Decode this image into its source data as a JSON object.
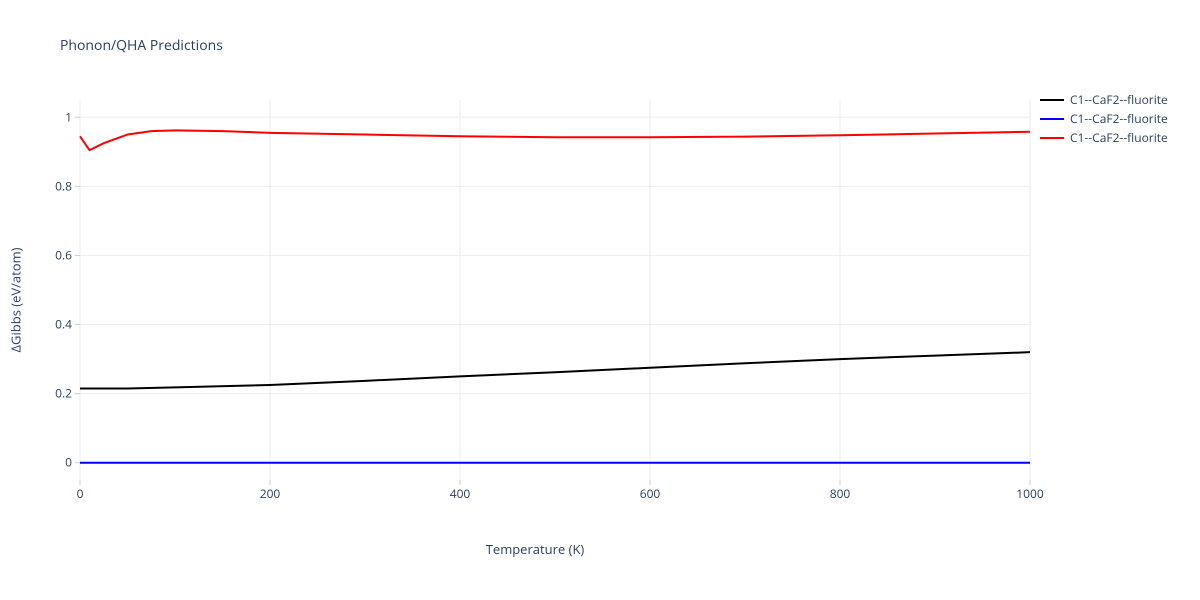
{
  "title": "Phonon/QHA Predictions",
  "xlabel": "Temperature (K)",
  "ylabel": "ΔGibbs (eV/atom)",
  "chart": {
    "type": "line",
    "xlim": [
      0,
      1000
    ],
    "ylim": [
      -0.05,
      1.05
    ],
    "xticks": [
      0,
      200,
      400,
      600,
      800,
      1000
    ],
    "yticks": [
      0,
      0.2,
      0.4,
      0.6,
      0.8,
      1
    ],
    "background_color": "#ffffff",
    "grid_color": "#eeeeee",
    "axis_line_color": "#cccccc",
    "tick_label_color": "#2a3f5f",
    "tick_label_fontsize": 12,
    "title_fontsize": 14,
    "label_fontsize": 13,
    "line_width": 2,
    "series": [
      {
        "name": "C1--CaF2--fluorite",
        "color": "#000000",
        "x": [
          0,
          50,
          100,
          200,
          300,
          400,
          500,
          600,
          700,
          800,
          900,
          1000
        ],
        "y": [
          0.215,
          0.215,
          0.218,
          0.225,
          0.237,
          0.25,
          0.262,
          0.275,
          0.288,
          0.3,
          0.31,
          0.32
        ]
      },
      {
        "name": "C1--CaF2--fluorite",
        "color": "#0000ff",
        "x": [
          0,
          200,
          400,
          600,
          800,
          1000
        ],
        "y": [
          0,
          0,
          0,
          0,
          0,
          0
        ]
      },
      {
        "name": "C1--CaF2--fluorite",
        "color": "#ff0000",
        "x": [
          0,
          10,
          25,
          50,
          75,
          100,
          150,
          200,
          300,
          400,
          500,
          600,
          700,
          800,
          900,
          1000
        ],
        "y": [
          0.945,
          0.905,
          0.925,
          0.95,
          0.96,
          0.962,
          0.96,
          0.955,
          0.95,
          0.945,
          0.942,
          0.942,
          0.944,
          0.948,
          0.953,
          0.958
        ]
      }
    ]
  },
  "legend": {
    "items": [
      {
        "label": "C1--CaF2--fluorite",
        "color": "#000000"
      },
      {
        "label": "C1--CaF2--fluorite",
        "color": "#0000ff"
      },
      {
        "label": "C1--CaF2--fluorite",
        "color": "#ff0000"
      }
    ]
  }
}
